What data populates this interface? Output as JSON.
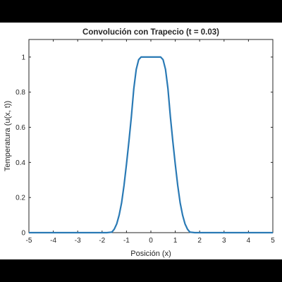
{
  "chart_data": {
    "type": "line",
    "title": "Convolución con Trapecio (t = 0.03)",
    "xlabel": "Posición (x)",
    "ylabel": "Temperatura (u(x, t))",
    "xlim": [
      -5,
      5
    ],
    "ylim": [
      0,
      1.1
    ],
    "xticks": [
      "-5",
      "-4",
      "-3",
      "-2",
      "-1",
      "0",
      "1",
      "2",
      "3",
      "4",
      "5"
    ],
    "yticks": [
      "0",
      "0.2",
      "0.4",
      "0.6",
      "0.8",
      "1"
    ],
    "grid": false,
    "line_color": "#2a7ab5",
    "series": [
      {
        "x": [
          -5,
          -2.0,
          -1.8,
          -1.6,
          -1.5,
          -1.4,
          -1.3,
          -1.2,
          -1.1,
          -1.0,
          -0.9,
          -0.8,
          -0.7,
          -0.6,
          -0.5,
          -0.4,
          -0.3,
          -0.2,
          -0.1,
          0,
          0.1,
          0.2,
          0.3,
          0.4,
          0.5,
          0.6,
          0.7,
          0.8,
          0.9,
          1.0,
          1.1,
          1.2,
          1.3,
          1.4,
          1.5,
          1.6,
          1.8,
          2.0,
          5
        ],
        "y": [
          0,
          0,
          0,
          0.003,
          0.02,
          0.05,
          0.1,
          0.17,
          0.27,
          0.39,
          0.52,
          0.66,
          0.82,
          0.93,
          0.985,
          1.0,
          1.0,
          1.0,
          1.0,
          1.0,
          1.0,
          1.0,
          1.0,
          1.0,
          0.985,
          0.93,
          0.82,
          0.66,
          0.52,
          0.39,
          0.27,
          0.17,
          0.1,
          0.05,
          0.02,
          0.003,
          0,
          0,
          0
        ]
      }
    ]
  }
}
